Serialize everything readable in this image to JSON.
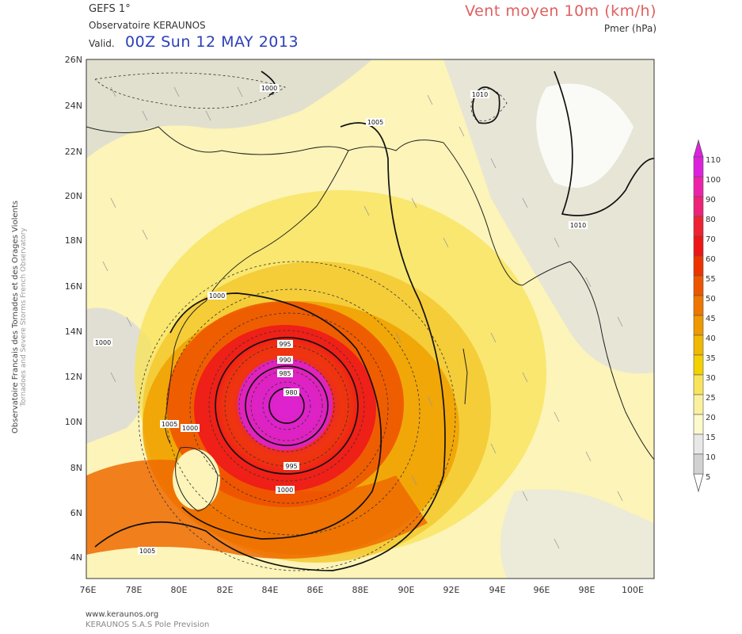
{
  "header": {
    "model": "GEFS 1°",
    "observatory": "Observatoire KERAUNOS",
    "valid_label": "Valid.",
    "valid_time": "00Z Sun 12 MAY 2013",
    "field_title": "Vent moyen 10m (km/h)",
    "field_sub": "Pmer (hPa)"
  },
  "side_label": {
    "line1": "Observatoire Francais des Tornades et des Orages Violents",
    "line2": "Tornadoes and Severe Storms French Observatory"
  },
  "footer": {
    "website": "www.keraunos.org",
    "company": "KERAUNOS S.A.S Pole Prevision"
  },
  "map": {
    "lat_labels": [
      "26N",
      "24N",
      "22N",
      "20N",
      "18N",
      "16N",
      "14N",
      "12N",
      "10N",
      "8N",
      "6N",
      "4N"
    ],
    "lon_labels": [
      "76E",
      "78E",
      "80E",
      "82E",
      "84E",
      "86E",
      "88E",
      "90E",
      "92E",
      "94E",
      "96E",
      "98E",
      "100E"
    ],
    "isobar_labels": [
      "1000",
      "1005",
      "1010",
      "1010",
      "1000",
      "1000",
      "995",
      "990",
      "985",
      "980",
      "995",
      "1000",
      "1000",
      "1005",
      "1005"
    ]
  },
  "colorbar": {
    "ticks": [
      "110",
      "100",
      "90",
      "80",
      "70",
      "60",
      "55",
      "50",
      "45",
      "40",
      "35",
      "30",
      "25",
      "20",
      "15",
      "10",
      "5"
    ],
    "colors": [
      "#dd22dd",
      "#ee22aa",
      "#ee2277",
      "#ee2233",
      "#ee1515",
      "#ee3300",
      "#ee5500",
      "#ee7700",
      "#ee9900",
      "#f0b800",
      "#f3d000",
      "#f8e45c",
      "#fbf09e",
      "#fcf9cc",
      "#e8e8e8",
      "#d2d2d2",
      "#ffffff"
    ]
  }
}
